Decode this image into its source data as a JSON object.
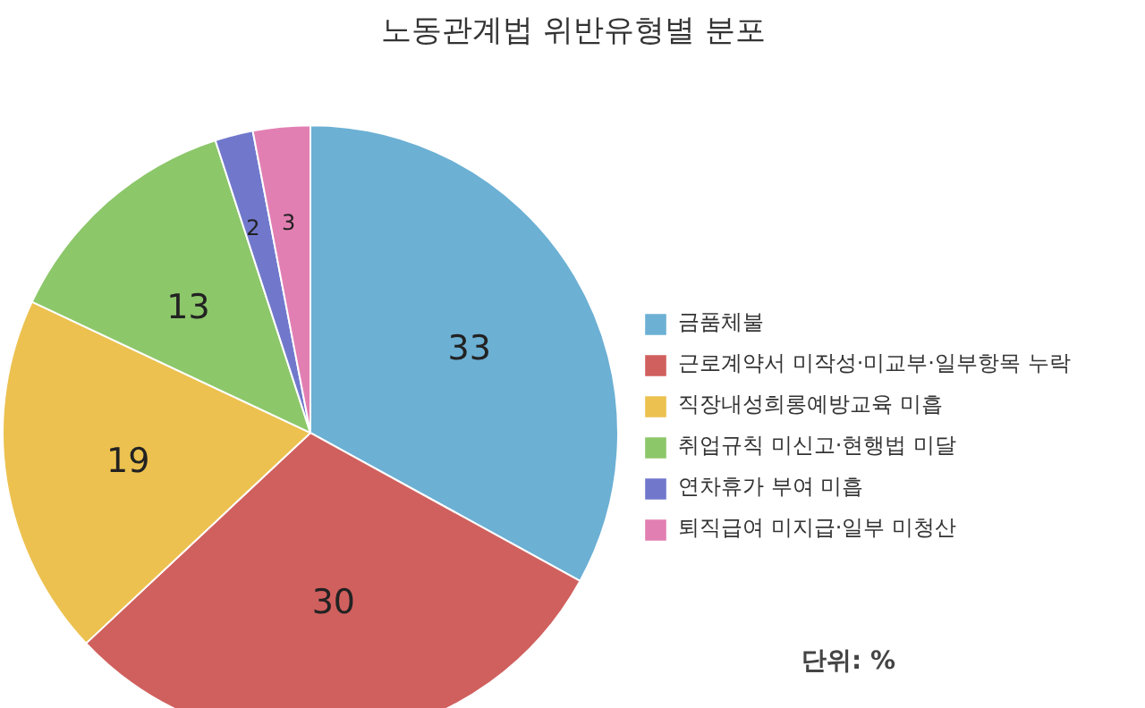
{
  "chart_data": {
    "type": "pie",
    "title": "노동관계법 위반유형별 분포",
    "categories": [
      "금품체불",
      "근로계약서 미작성·미교부·일부항목 누락",
      "직장내성희롱예방교육 미흡",
      "취업규칙 미신고·현행법 미달",
      "연차휴가 부여 미흡",
      "퇴직급여 미지급·일부 미청산"
    ],
    "values": [
      33,
      30,
      19,
      13,
      2,
      3
    ],
    "colors": [
      "#6cb0d4",
      "#d0605e",
      "#ecc14f",
      "#8cc76a",
      "#7178cc",
      "#e27fb2"
    ],
    "data_labels": true,
    "legend": "right",
    "annotations": [
      "단위: %"
    ]
  }
}
